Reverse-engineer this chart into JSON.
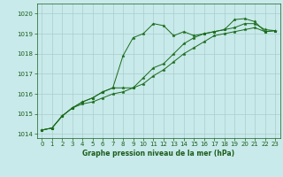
{
  "title": "Graphe pression niveau de la mer (hPa)",
  "background_color": "#c8eaea",
  "grid_color": "#aacccc",
  "line_color": "#1a6b1a",
  "xlim": [
    -0.5,
    23.5
  ],
  "ylim": [
    1013.8,
    1020.5
  ],
  "yticks": [
    1014,
    1015,
    1016,
    1017,
    1018,
    1019,
    1020
  ],
  "xticks": [
    0,
    1,
    2,
    3,
    4,
    5,
    6,
    7,
    8,
    9,
    10,
    11,
    12,
    13,
    14,
    15,
    16,
    17,
    18,
    19,
    20,
    21,
    22,
    23
  ],
  "series1": {
    "x": [
      0,
      1,
      2,
      3,
      4,
      5,
      6,
      7,
      8,
      9,
      10,
      11,
      12,
      13,
      14,
      15,
      16,
      17,
      18,
      19,
      20,
      21,
      22,
      23
    ],
    "y": [
      1014.2,
      1014.3,
      1014.9,
      1015.3,
      1015.6,
      1015.8,
      1016.1,
      1016.3,
      1017.9,
      1018.8,
      1019.0,
      1019.5,
      1019.4,
      1018.9,
      1019.1,
      1018.9,
      1019.0,
      1019.1,
      1019.2,
      1019.7,
      1019.75,
      1019.6,
      1019.1,
      1019.15
    ]
  },
  "series2": {
    "x": [
      0,
      1,
      2,
      3,
      4,
      5,
      6,
      7,
      8,
      9,
      10,
      11,
      12,
      13,
      14,
      15,
      16,
      17,
      18,
      19,
      20,
      21,
      22,
      23
    ],
    "y": [
      1014.2,
      1014.3,
      1014.9,
      1015.3,
      1015.6,
      1015.8,
      1016.1,
      1016.3,
      1016.3,
      1016.3,
      1016.8,
      1017.3,
      1017.5,
      1018.0,
      1018.5,
      1018.8,
      1019.0,
      1019.1,
      1019.2,
      1019.3,
      1019.5,
      1019.5,
      1019.2,
      1019.15
    ]
  },
  "series3": {
    "x": [
      0,
      1,
      2,
      3,
      4,
      5,
      6,
      7,
      8,
      9,
      10,
      11,
      12,
      13,
      14,
      15,
      16,
      17,
      18,
      19,
      20,
      21,
      22,
      23
    ],
    "y": [
      1014.2,
      1014.3,
      1014.9,
      1015.3,
      1015.5,
      1015.6,
      1015.8,
      1016.0,
      1016.1,
      1016.3,
      1016.5,
      1016.9,
      1017.2,
      1017.6,
      1018.0,
      1018.3,
      1018.6,
      1018.9,
      1019.0,
      1019.1,
      1019.2,
      1019.3,
      1019.1,
      1019.15
    ]
  },
  "tick_fontsize": 5,
  "xlabel_fontsize": 5.5,
  "tick_color": "#1a5c1a",
  "spine_color": "#1a5c1a"
}
